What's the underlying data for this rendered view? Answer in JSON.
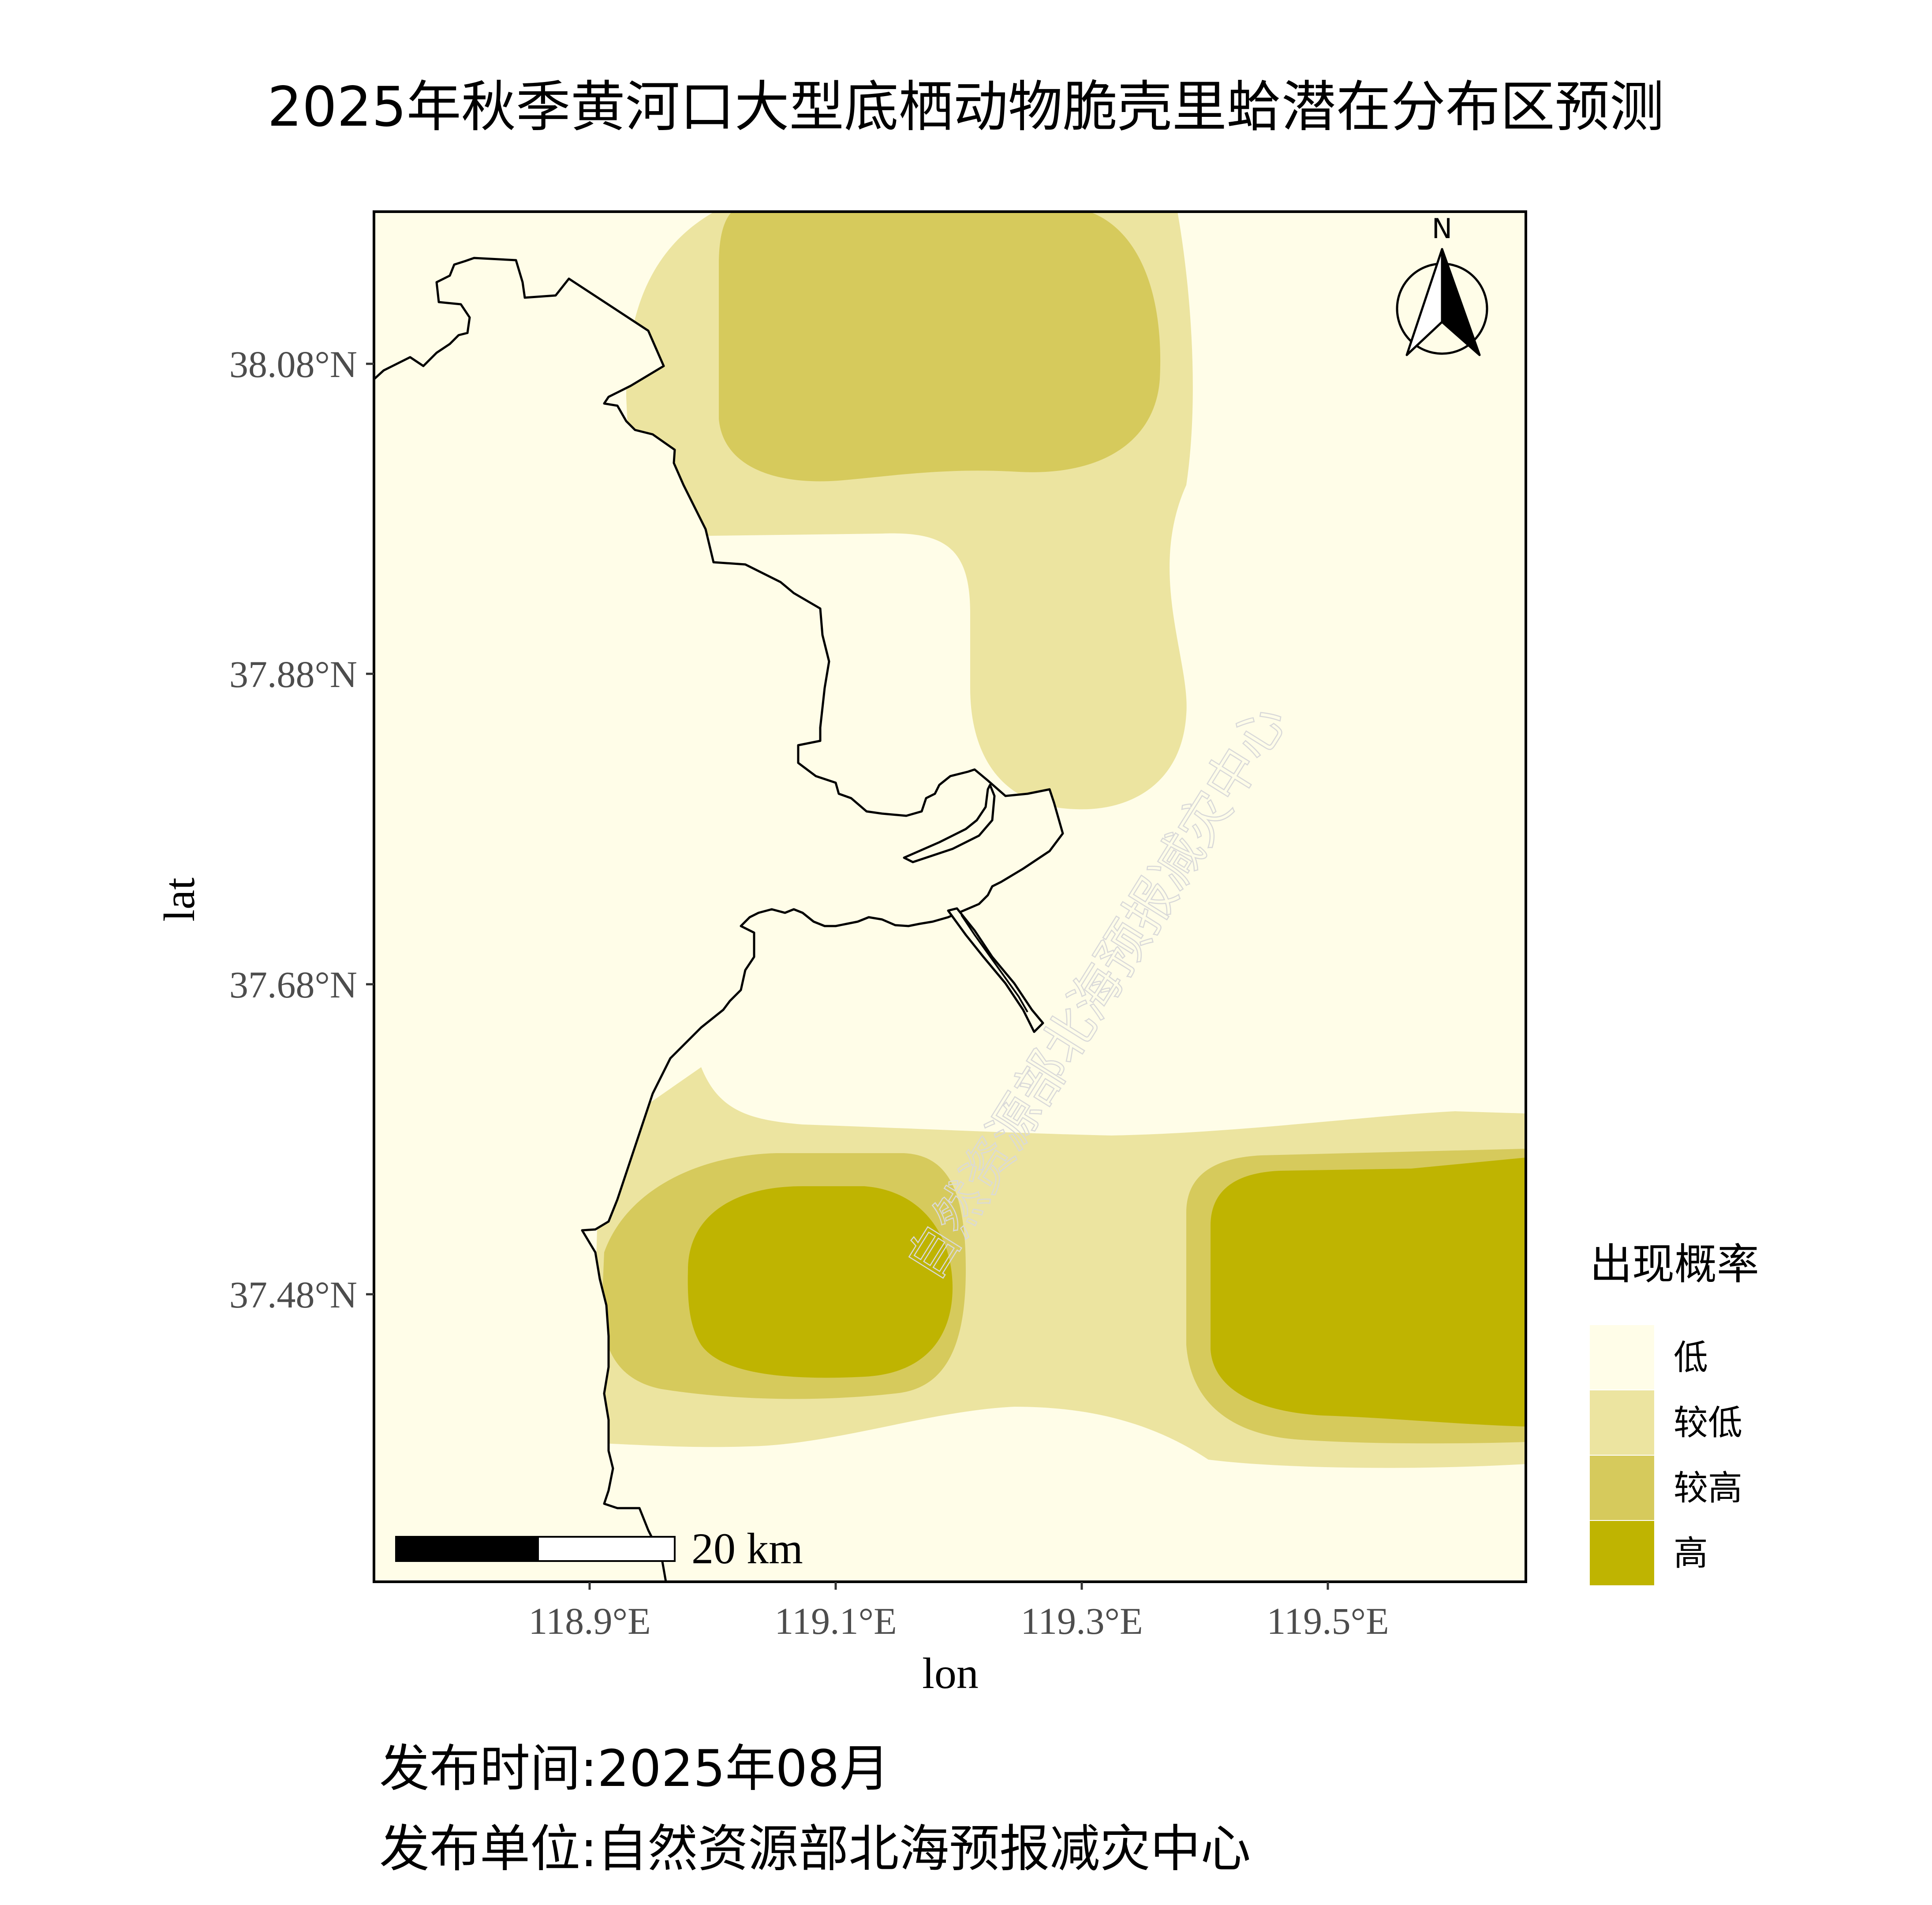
{
  "title": "2025年秋季黄河口大型底栖动物脆壳里蛤潜在分布区预测",
  "axes": {
    "x_label": "lon",
    "y_label": "lat",
    "x_ticks": [
      "118.9°E",
      "119.1°E",
      "119.3°E",
      "119.5°E"
    ],
    "y_ticks": [
      "38.08°N",
      "37.88°N",
      "37.68°N",
      "37.48°N"
    ]
  },
  "legend": {
    "title": "出现概率",
    "items": [
      {
        "label": "低",
        "color": "#fffde8"
      },
      {
        "label": "较低",
        "color": "#ece4a0"
      },
      {
        "label": "较高",
        "color": "#d6ca5c"
      },
      {
        "label": "高",
        "color": "#bfb401"
      }
    ]
  },
  "scale_bar": {
    "label": "20 km"
  },
  "north_arrow": {
    "label": "N",
    "icon": "north-arrow-icon"
  },
  "watermark": "自然资源部北海预报减灾中心",
  "footer": {
    "release_time": "发布时间:2025年08月",
    "release_unit": "发布单位:自然资源部北海预报减灾中心"
  },
  "colors": {
    "land": "#fffde8",
    "low": "#fffde8",
    "lower": "#ece4a0",
    "higher": "#d6ca5c",
    "high": "#bfb401",
    "coastline": "#000000"
  }
}
